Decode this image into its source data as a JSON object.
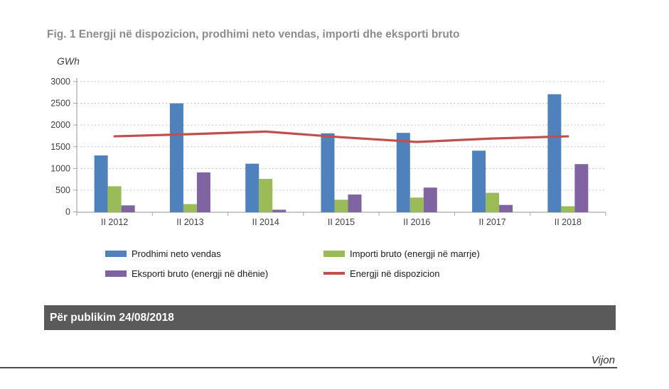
{
  "page": {
    "title": "Fig. 1 Energji në dispozicion, prodhimi neto vendas, importi dhe eksporti bruto",
    "footer_bar": "Për publikim 24/08/2018",
    "continuation": "Vijon"
  },
  "colors": {
    "title_text": "#8C8C8C",
    "footer_bar_bg": "#5A5A5A",
    "axis": "#A6A6A6",
    "gridline": "#BCC6D4",
    "tick_text": "#3F3F3F"
  },
  "chart_data": {
    "type": "bar",
    "title": "Fig. 1 Energji në dispozicion, prodhimi neto vendas, importi dhe eksporti bruto",
    "xlabel": "",
    "ylabel": "GWh",
    "ylim": [
      0,
      3000
    ],
    "ytick_step": 500,
    "grid": "horizontal-dotted",
    "legend_position": "bottom",
    "categories": [
      "II 2012",
      "II 2013",
      "II 2014",
      "II 2015",
      "II 2016",
      "II 2017",
      "II 2018"
    ],
    "series": [
      {
        "name": "Prodhimi neto vendas",
        "type": "bar",
        "color": "#4F81BD",
        "values": [
          1300,
          2500,
          1110,
          1810,
          1820,
          1410,
          2710
        ]
      },
      {
        "name": "Importi bruto (energji në marrje)",
        "type": "bar",
        "color": "#9BBB59",
        "values": [
          590,
          180,
          760,
          280,
          330,
          440,
          130
        ]
      },
      {
        "name": "Eksporti bruto (energji në dhënie)",
        "type": "bar",
        "color": "#8064A2",
        "values": [
          150,
          910,
          50,
          400,
          560,
          160,
          1100
        ]
      },
      {
        "name": "Energji në dispozicion",
        "type": "line",
        "color": "#C0504D",
        "values": [
          1740,
          1790,
          1850,
          1720,
          1610,
          1690,
          1740
        ]
      }
    ]
  }
}
